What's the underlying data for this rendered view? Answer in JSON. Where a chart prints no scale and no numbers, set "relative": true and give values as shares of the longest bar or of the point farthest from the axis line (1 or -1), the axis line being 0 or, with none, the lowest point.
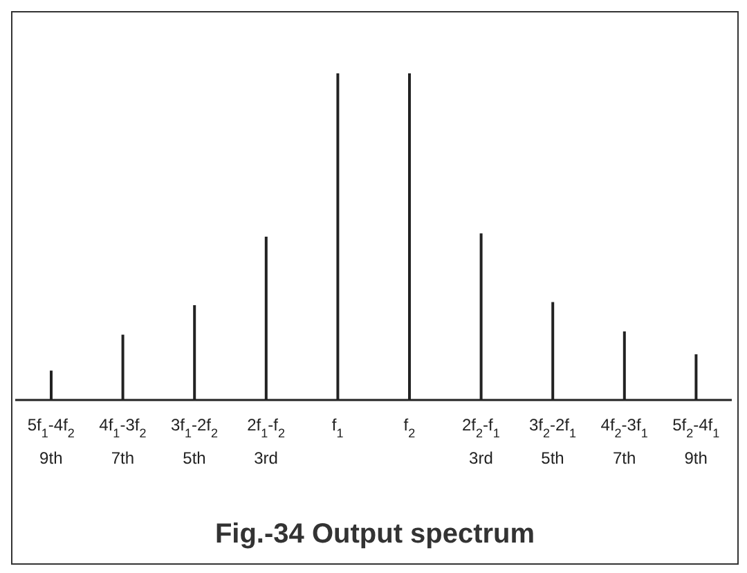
{
  "chart_data": {
    "type": "bar",
    "title": "Fig.-34  Output spectrum",
    "relative": true,
    "categories": [
      "5f$_{1}$-4f$_{2}$\n9th",
      "4f$_{1}$-3f$_{2}$\n7th",
      "3f$_{1}$-2f$_{2}$\n5th",
      "2f$_{1}$-f$_{2}$\n3rd",
      "f$_{1}$",
      "f$_{2}$",
      "2f$_{2}$-f$_{1}$\n3rd",
      "3f$_{2}$-2f$_{1}$\n5th",
      "4f$_{2}$-3f$_{1}$\n7th",
      "5f$_{2}$-4f$_{1}$\n9th"
    ],
    "values": [
      0.09,
      0.2,
      0.29,
      0.5,
      1,
      1,
      0.51,
      0.3,
      0.21,
      0.14
    ],
    "color": "#222222",
    "grid": false,
    "legend": false
  }
}
